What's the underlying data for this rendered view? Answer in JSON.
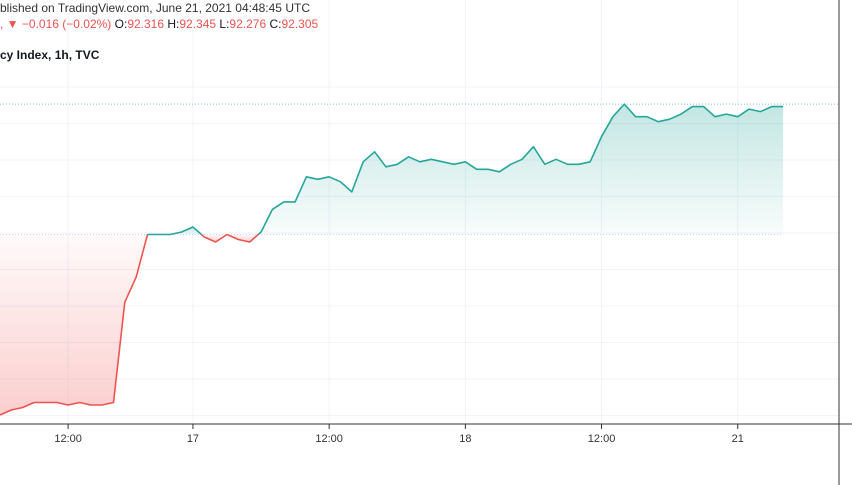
{
  "header": {
    "published": "blished on TradingView.com, June 21, 2021 04:48:45 UTC",
    "change_prefix": ", ▼",
    "change": "−0.016 (−0.02%)",
    "open_label": "O:",
    "open": "92.316",
    "high_label": "H:",
    "high": "92.345",
    "low_label": "L:",
    "low": "92.276",
    "close_label": "C:",
    "close": "92.305"
  },
  "chart_title": "cy Index, 1h, TVC",
  "colors": {
    "up_line": "#26a69a",
    "down_line": "#ef5350",
    "up_fill": "#26a69a",
    "down_fill": "#ef5350",
    "grid": "#f0f3fa",
    "axis": "#333333"
  },
  "chart_data": {
    "type": "area",
    "subtype": "baseline",
    "x_tick_labels": [
      "12:00",
      "17",
      "12:00",
      "18",
      "12:00",
      "21"
    ],
    "x_tick_index": [
      6,
      17,
      29,
      41,
      53,
      65
    ],
    "baseline": 91.77,
    "ylim": [
      91.05,
      92.45
    ],
    "grid": true,
    "values": [
      91.05,
      91.07,
      91.08,
      91.1,
      91.1,
      91.1,
      91.09,
      91.1,
      91.09,
      91.09,
      91.1,
      91.5,
      91.6,
      91.77,
      91.77,
      91.77,
      91.78,
      91.8,
      91.76,
      91.74,
      91.77,
      91.75,
      91.74,
      91.78,
      91.87,
      91.9,
      91.9,
      92.0,
      91.99,
      92.0,
      91.98,
      91.94,
      92.06,
      92.1,
      92.04,
      92.05,
      92.08,
      92.06,
      92.07,
      92.06,
      92.05,
      92.06,
      92.03,
      92.03,
      92.02,
      92.05,
      92.07,
      92.12,
      92.05,
      92.07,
      92.05,
      92.05,
      92.06,
      92.16,
      92.24,
      92.29,
      92.24,
      92.24,
      92.22,
      92.23,
      92.25,
      92.28,
      92.28,
      92.24,
      92.25,
      92.24,
      92.27,
      92.26,
      92.28,
      92.28
    ]
  }
}
